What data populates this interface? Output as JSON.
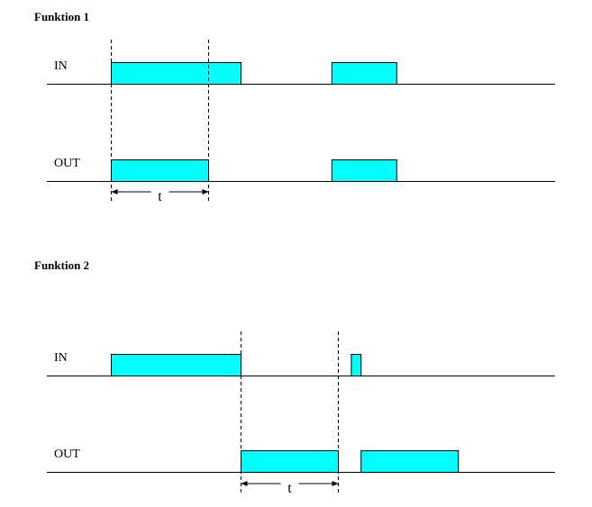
{
  "colors": {
    "pulse_fill": "#00ffff",
    "line": "#000000"
  },
  "sections": [
    {
      "title": "Funktion 1",
      "signals": [
        {
          "label": "IN",
          "pulses": [
            [
              0,
              2.0
            ],
            [
              3.4,
              4.4
            ]
          ]
        },
        {
          "label": "OUT",
          "pulses": [
            [
              0,
              1.5
            ],
            [
              3.4,
              4.4
            ]
          ]
        }
      ],
      "guides": [
        0,
        1.5
      ],
      "timer": {
        "label": "t",
        "from": 0,
        "to": 1.5
      }
    },
    {
      "title": "Funktion 2",
      "signals": [
        {
          "label": "IN",
          "pulses": [
            [
              0,
              2.0
            ],
            [
              3.7,
              3.85
            ]
          ]
        },
        {
          "label": "OUT",
          "pulses": [
            [
              2.0,
              3.5
            ],
            [
              3.85,
              5.35
            ]
          ]
        }
      ],
      "guides": [
        2.0,
        3.5
      ],
      "timer": {
        "label": "t",
        "from": 2.0,
        "to": 3.5
      }
    }
  ]
}
